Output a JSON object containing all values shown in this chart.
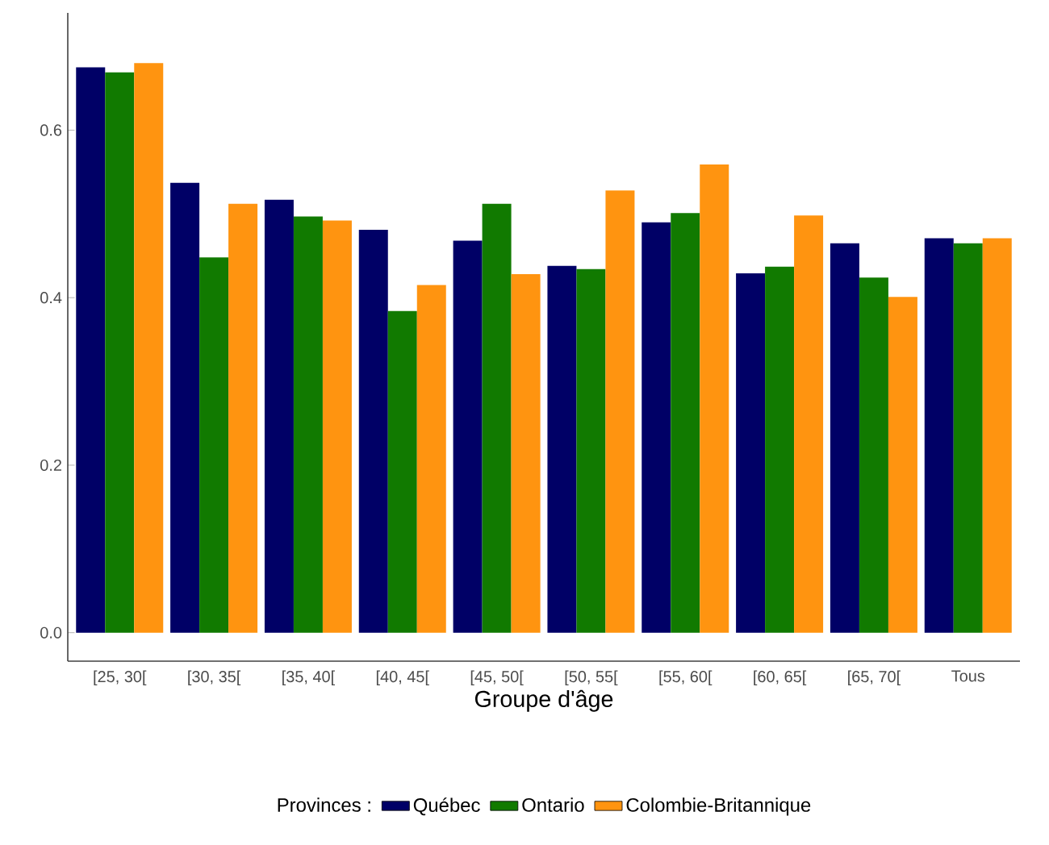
{
  "chart_data": {
    "type": "bar",
    "xlabel": "Groupe d'âge",
    "legend_title": "Provinces :",
    "categories": [
      "[25, 30[",
      "[30, 35[",
      "[35, 40[",
      "[40, 45[",
      "[45, 50[",
      "[50, 55[",
      "[55, 60[",
      "[60, 65[",
      "[65, 70[",
      "Tous"
    ],
    "series": [
      {
        "name": "Québec",
        "color": "#000066",
        "values": [
          0.675,
          0.537,
          0.517,
          0.481,
          0.468,
          0.438,
          0.49,
          0.429,
          0.465,
          0.471
        ]
      },
      {
        "name": "Ontario",
        "color": "#117a00",
        "values": [
          0.669,
          0.448,
          0.497,
          0.384,
          0.512,
          0.434,
          0.501,
          0.437,
          0.424,
          0.465
        ]
      },
      {
        "name": "Colombie-Britannique",
        "color": "#ff9410",
        "values": [
          0.68,
          0.512,
          0.492,
          0.415,
          0.428,
          0.528,
          0.559,
          0.498,
          0.401,
          0.471
        ]
      }
    ],
    "ylim": [
      -0.034,
      0.74
    ],
    "yticks": [
      {
        "value": 0,
        "label": "0.0"
      },
      {
        "value": 0.2,
        "label": "0.2"
      },
      {
        "value": 0.4,
        "label": "0.4"
      },
      {
        "value": 0.6,
        "label": "0.6"
      }
    ],
    "grid": false,
    "legend": "bottom"
  }
}
